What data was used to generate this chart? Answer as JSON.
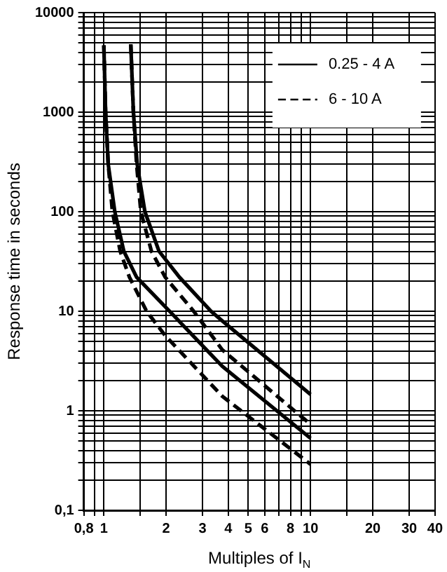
{
  "chart_data": {
    "type": "line",
    "xlabel": "Multiples of I$_{N}$",
    "ylabel": "Response time in seconds",
    "log": "xy",
    "grid": true,
    "legend": "top right",
    "marker": "none",
    "xlim": [
      0.8,
      40
    ],
    "ylim": [
      0.1,
      10000
    ],
    "xticks": [
      {
        "value": 0.8,
        "label": "0,8"
      },
      {
        "value": 0.9,
        "label": null
      },
      1,
      {
        "value": 1.5,
        "label": null
      },
      2,
      3,
      4,
      5,
      6,
      {
        "value": 7,
        "label": null
      },
      8,
      {
        "value": 9,
        "label": null
      },
      10,
      {
        "value": 15,
        "label": null
      },
      20,
      30,
      40
    ],
    "yticks": [
      {
        "value": 0.1,
        "label": "0,1"
      },
      {
        "value": 0.2,
        "label": null
      },
      {
        "value": 0.3,
        "label": null
      },
      {
        "value": 0.4,
        "label": null
      },
      {
        "value": 0.5,
        "label": null
      },
      {
        "value": 0.6,
        "label": null
      },
      {
        "value": 0.7,
        "label": null
      },
      {
        "value": 0.8,
        "label": null
      },
      {
        "value": 0.9,
        "label": null
      },
      1,
      {
        "value": 2,
        "label": null
      },
      {
        "value": 3,
        "label": null
      },
      {
        "value": 4,
        "label": null
      },
      {
        "value": 5,
        "label": null
      },
      {
        "value": 6,
        "label": null
      },
      {
        "value": 7,
        "label": null
      },
      {
        "value": 8,
        "label": null
      },
      {
        "value": 9,
        "label": null
      },
      10,
      {
        "value": 20,
        "label": null
      },
      {
        "value": 30,
        "label": null
      },
      {
        "value": 40,
        "label": null
      },
      {
        "value": 50,
        "label": null
      },
      {
        "value": 60,
        "label": null
      },
      {
        "value": 70,
        "label": null
      },
      {
        "value": 80,
        "label": null
      },
      {
        "value": 90,
        "label": null
      },
      100,
      {
        "value": 200,
        "label": null
      },
      {
        "value": 300,
        "label": null
      },
      {
        "value": 400,
        "label": null
      },
      {
        "value": 500,
        "label": null
      },
      {
        "value": 600,
        "label": null
      },
      {
        "value": 700,
        "label": null
      },
      {
        "value": 800,
        "label": null
      },
      {
        "value": 900,
        "label": null
      },
      1000,
      {
        "value": 2000,
        "label": null
      },
      {
        "value": 3000,
        "label": null
      },
      {
        "value": 4000,
        "label": null
      },
      {
        "value": 5000,
        "label": null
      },
      {
        "value": 6000,
        "label": null
      },
      {
        "value": 7000,
        "label": null
      },
      {
        "value": 8000,
        "label": null
      },
      {
        "value": 9000,
        "label": null
      },
      10000
    ],
    "series": [
      {
        "name": "0.25 - 4 A",
        "color": "#000000",
        "line_style": "solid",
        "x": [
          1.0,
          1.02,
          1.05,
          1.13,
          1.25,
          1.44,
          2.08,
          3.74,
          10
        ],
        "values": [
          4700,
          1000,
          300,
          100,
          40,
          22,
          10,
          2.8,
          0.53
        ]
      },
      {
        "name": "6 - 10 A",
        "color": "#000000",
        "line_style": "dashed",
        "x": [
          1.0,
          1.02,
          1.05,
          1.1,
          1.2,
          1.33,
          1.61,
          1.98,
          3.74,
          10
        ],
        "values": [
          4700,
          1000,
          300,
          100,
          40,
          22,
          10,
          5.7,
          1.4,
          0.29
        ]
      },
      {
        "color": "#000000",
        "line_style": "solid",
        "x": [
          1.35,
          1.39,
          1.45,
          1.58,
          1.85,
          2.32,
          3.3,
          3.74,
          10
        ],
        "values": [
          4800,
          1000,
          300,
          100,
          40,
          22,
          10,
          8,
          1.46
        ]
      },
      {
        "color": "#000000",
        "line_style": "dashed",
        "x": [
          1.35,
          1.39,
          1.44,
          1.51,
          1.7,
          1.98,
          2.72,
          3.74,
          10
        ],
        "values": [
          4800,
          1000,
          300,
          100,
          40,
          22,
          10,
          4.1,
          0.73
        ]
      }
    ]
  }
}
